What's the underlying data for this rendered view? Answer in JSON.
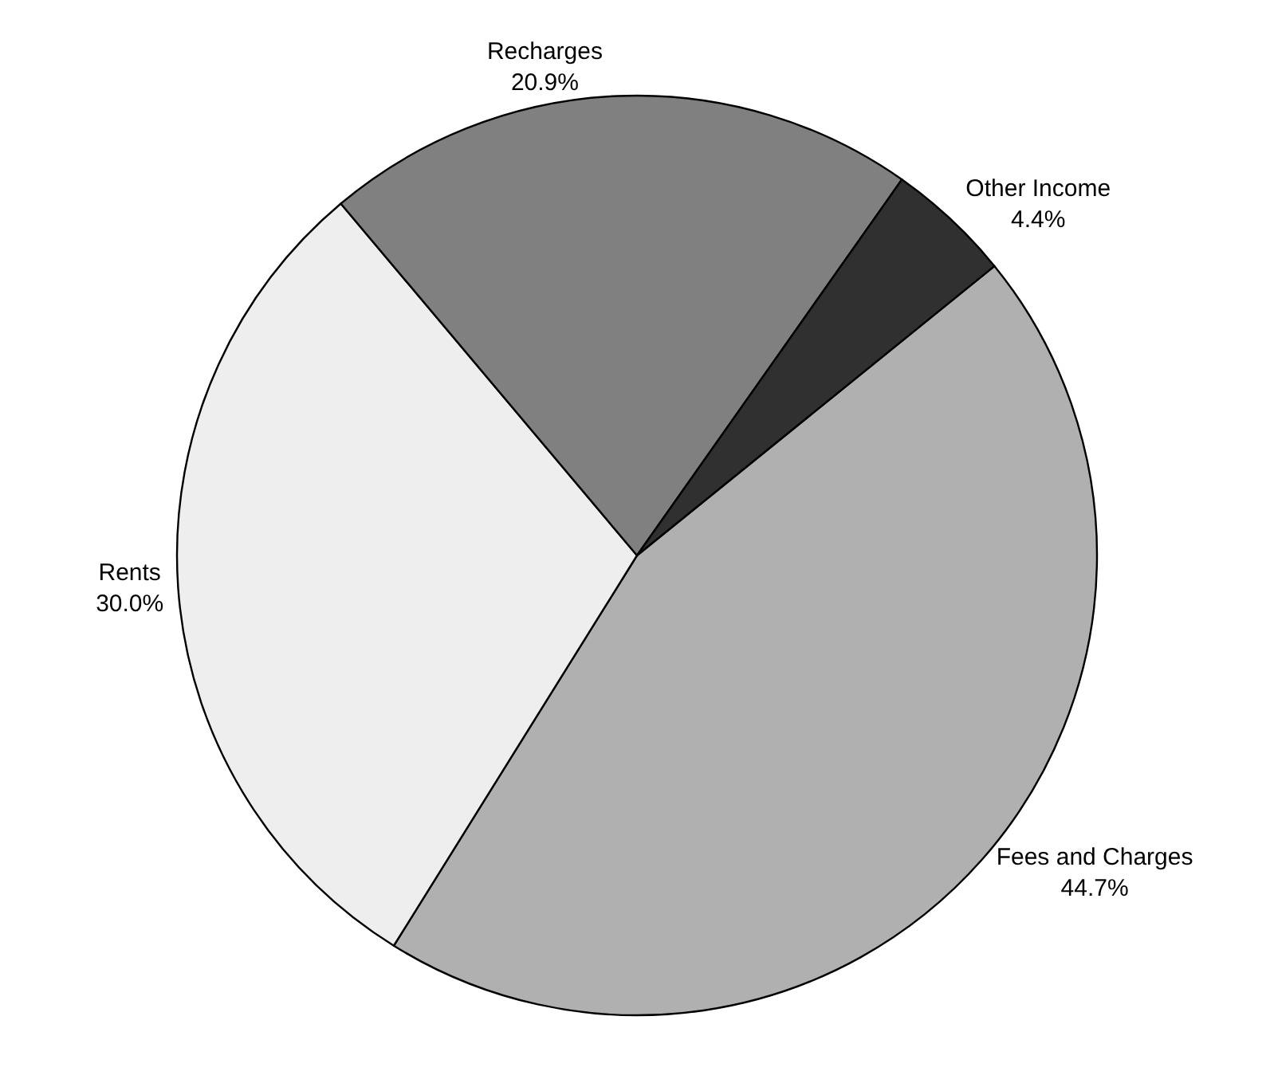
{
  "chart_data": {
    "type": "pie",
    "categories": [
      "Fees and Charges",
      "Rents",
      "Recharges",
      "Other Income"
    ],
    "values": [
      44.7,
      30.0,
      20.9,
      4.4
    ],
    "value_labels": [
      "44.7%",
      "30.0%",
      "20.9%",
      "4.4%"
    ],
    "colors": [
      "#b0b0b0",
      "#eeeeee",
      "#808080",
      "#303030"
    ],
    "legend": false
  }
}
